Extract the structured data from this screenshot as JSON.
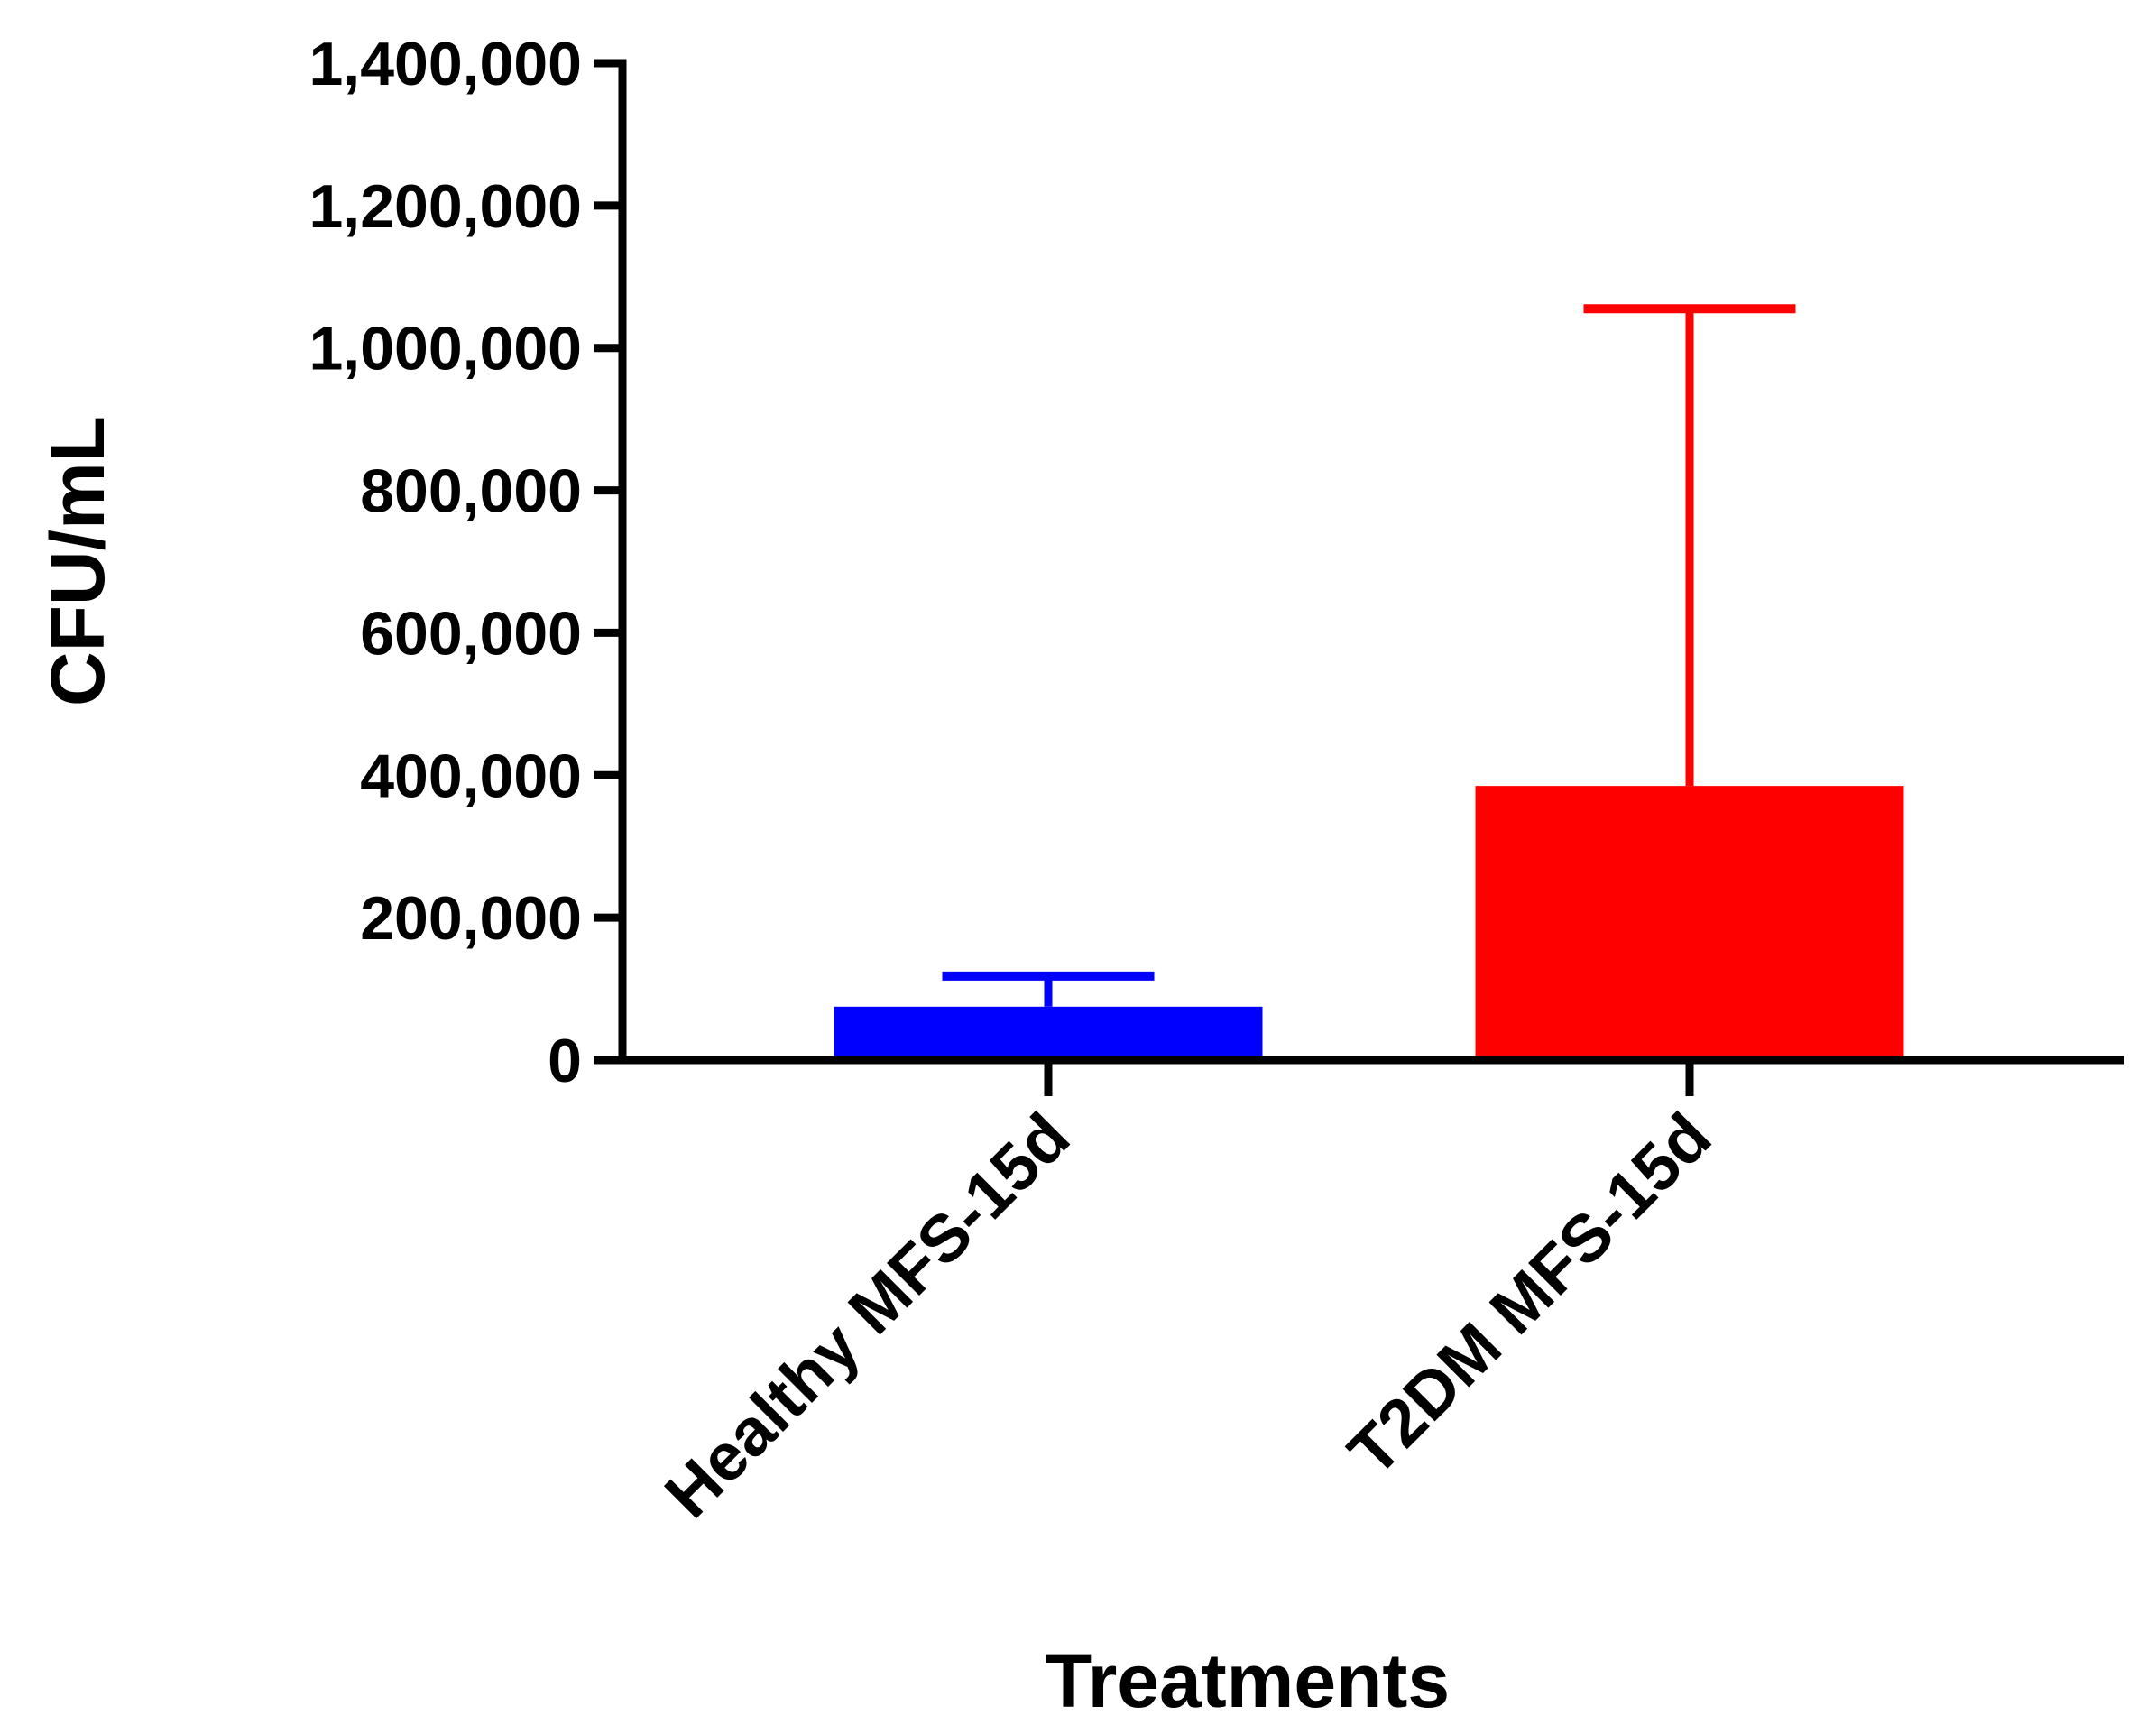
{
  "chart_data": {
    "type": "bar",
    "title": "",
    "xlabel": "Treatments",
    "ylabel": "CFU/mL",
    "ylim": [
      0,
      1400000
    ],
    "yticks": [
      0,
      200000,
      400000,
      600000,
      800000,
      1000000,
      1200000,
      1400000
    ],
    "ytick_labels": [
      "0",
      "200,000",
      "400,000",
      "600,000",
      "800,000",
      "1,000,000",
      "1,200,000",
      "1,400,000"
    ],
    "categories": [
      "Healthy MFS-15d",
      "T2DM MFS-15d"
    ],
    "values": [
      75000,
      385000
    ],
    "error_upper": [
      118000,
      1055000
    ],
    "colors": [
      "#0000ff",
      "#ff0000"
    ],
    "grid": false,
    "legend": false
  }
}
